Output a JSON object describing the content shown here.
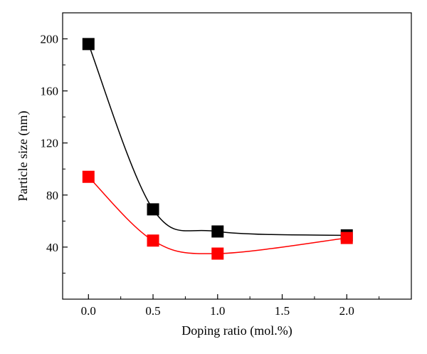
{
  "chart_data": {
    "type": "line",
    "title": "",
    "xlabel": "Doping ratio (mol.%)",
    "ylabel": "Particle size (nm)",
    "xlim": [
      -0.2,
      2.5
    ],
    "ylim": [
      0,
      220
    ],
    "x_ticks": [
      0.0,
      0.5,
      1.0,
      1.5,
      2.0
    ],
    "x_tick_labels": [
      "0.0",
      "0.5",
      "1.0",
      "1.5",
      "2.0"
    ],
    "y_ticks": [
      40,
      80,
      120,
      160,
      200
    ],
    "y_tick_labels": [
      "40",
      "80",
      "120",
      "160",
      "200"
    ],
    "grid": false,
    "legend": "none",
    "marker": "square",
    "line_style": "smooth spline",
    "series": [
      {
        "color": "#000000",
        "x": [
          0.0,
          0.5,
          1.0,
          2.0
        ],
        "values": [
          196,
          69,
          52,
          49
        ]
      },
      {
        "color": "#ff0000",
        "x": [
          0.0,
          0.5,
          1.0,
          2.0
        ],
        "values": [
          94,
          45,
          35,
          47
        ]
      }
    ]
  }
}
